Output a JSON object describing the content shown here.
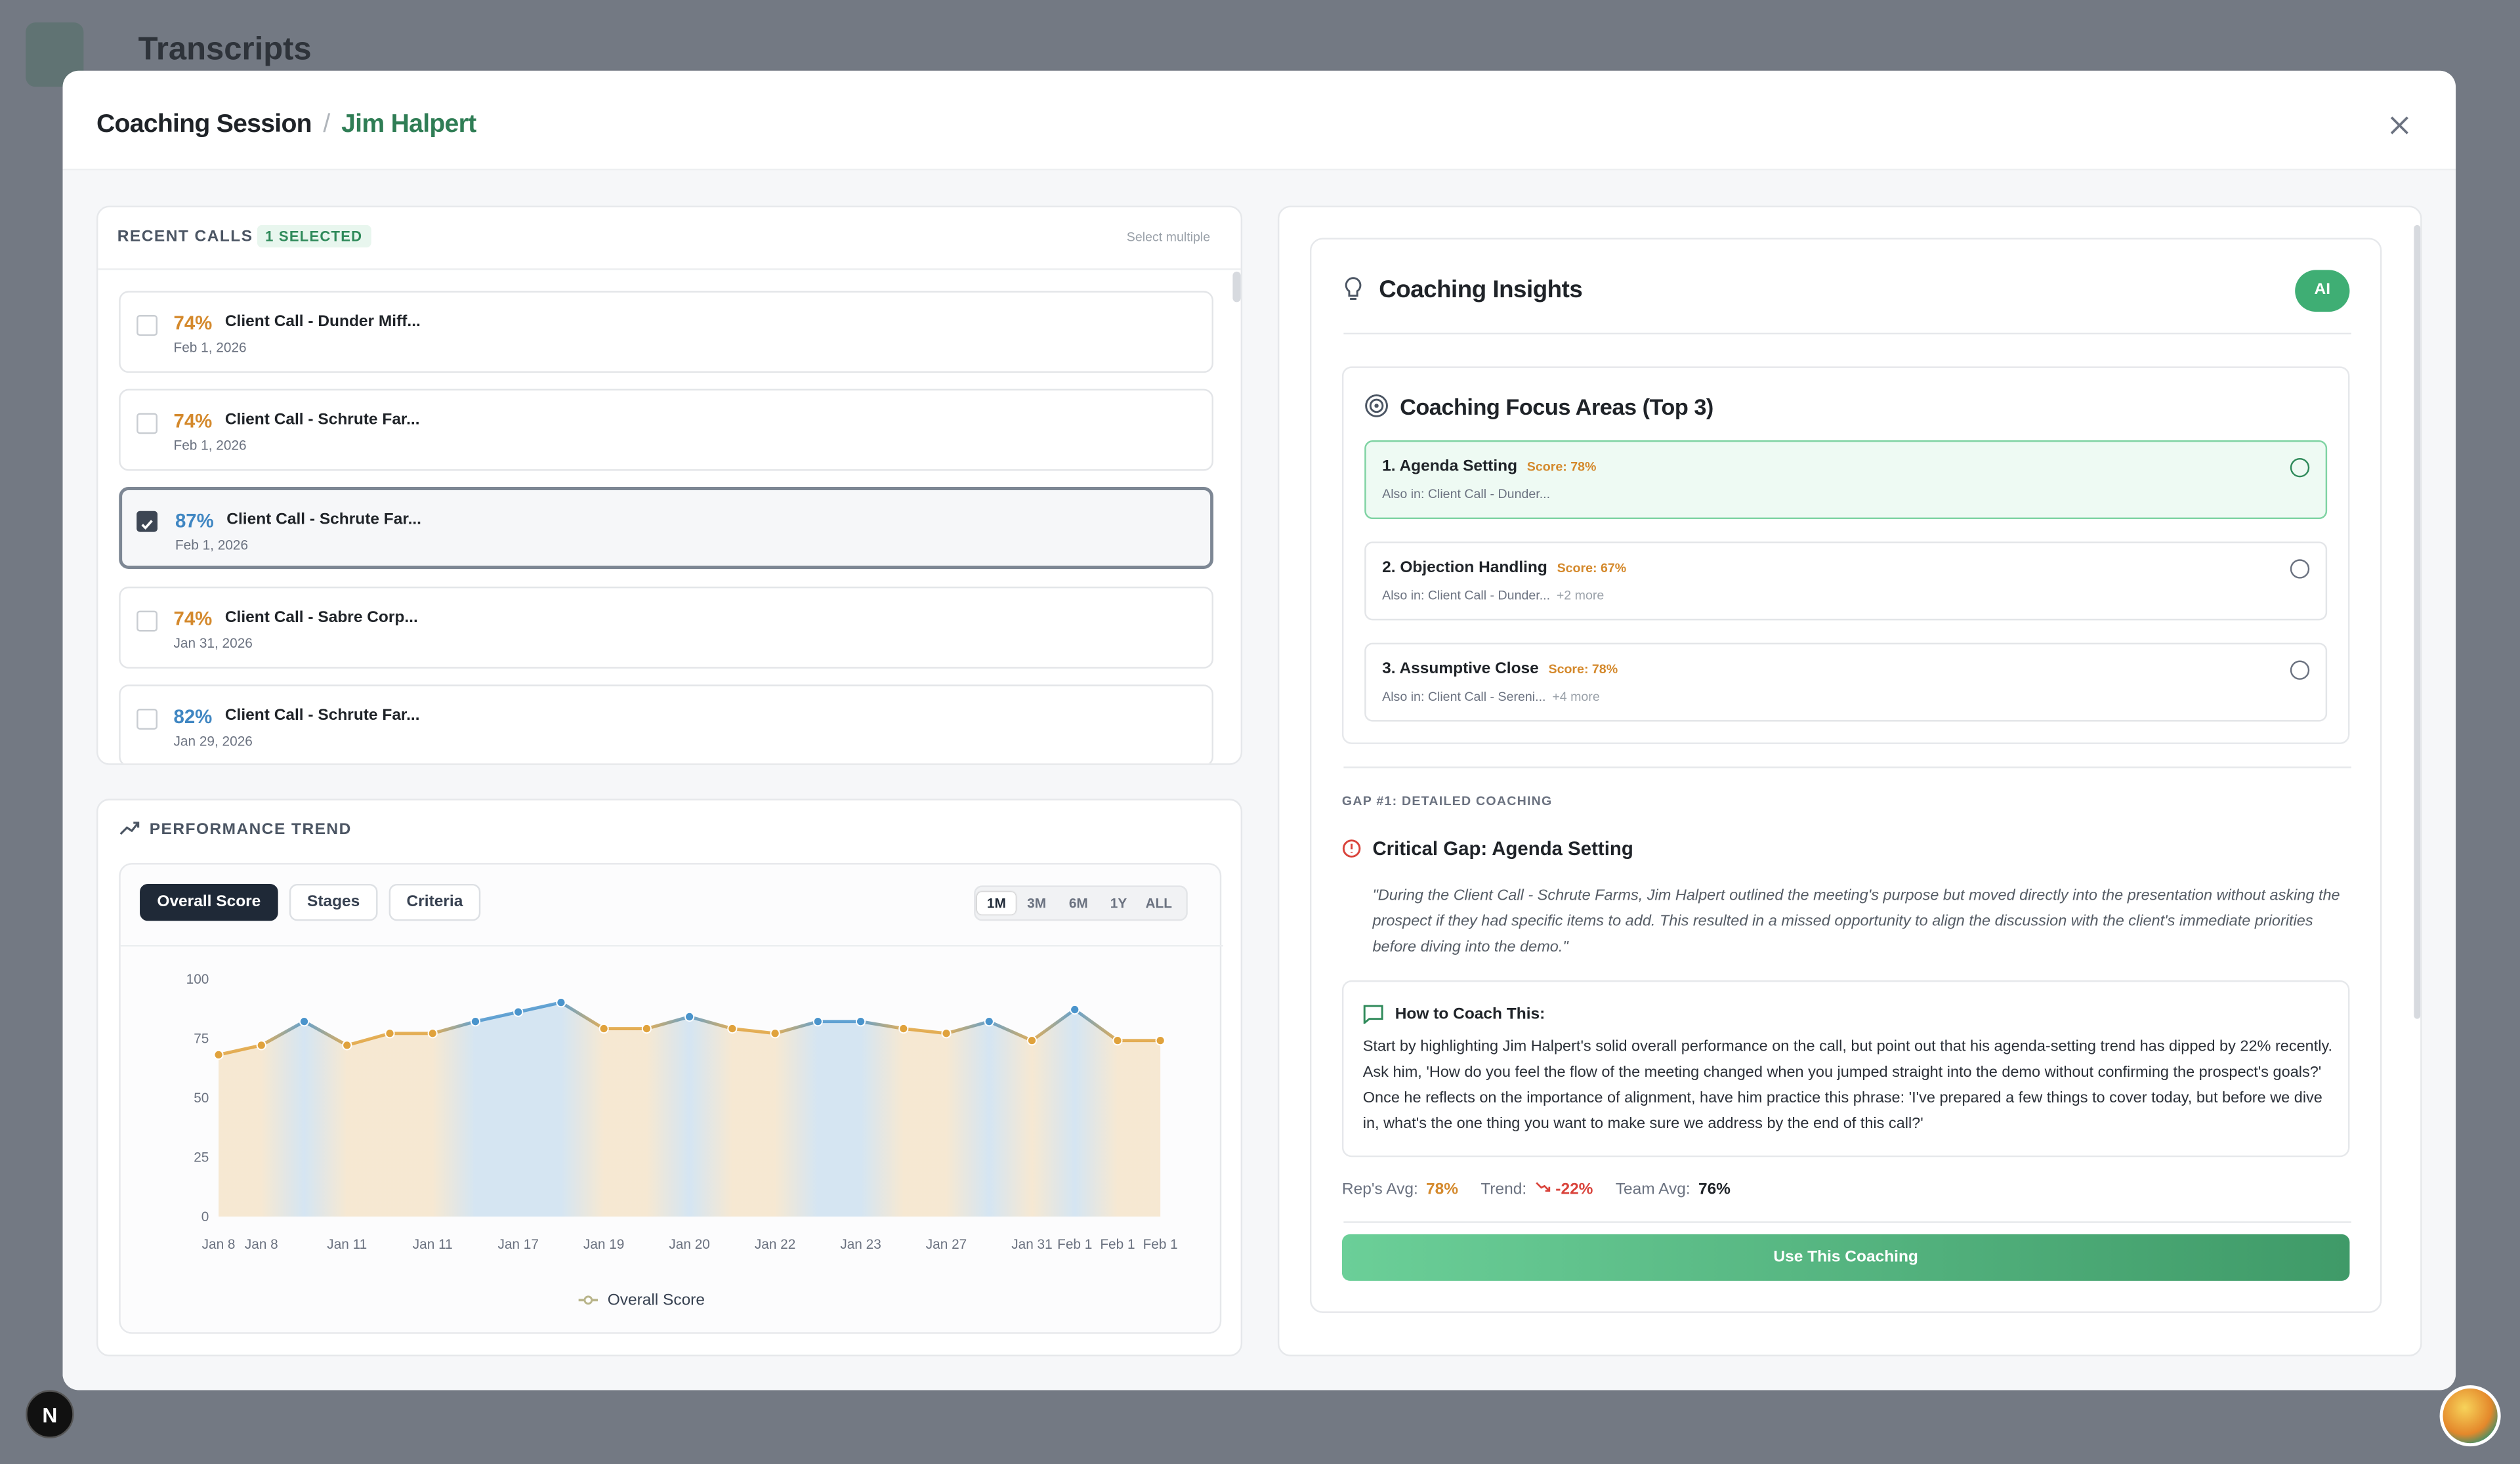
{
  "background": {
    "title": "Transcripts"
  },
  "header": {
    "title": "Coaching Session",
    "separator": "/",
    "name": "Jim Halpert"
  },
  "recent_calls": {
    "label": "RECENT CALLS",
    "badge": "1 SELECTED",
    "action": "Select multiple",
    "calls": [
      {
        "score": "74%",
        "title": "Client Call - Dunder Miff...",
        "date": "Feb 1, 2026",
        "checked": false
      },
      {
        "score": "74%",
        "title": "Client Call - Schrute Far...",
        "date": "Feb 1, 2026",
        "checked": false
      },
      {
        "score": "87%",
        "title": "Client Call - Schrute Far...",
        "date": "Feb 1, 2026",
        "checked": true
      },
      {
        "score": "74%",
        "title": "Client Call - Sabre Corp...",
        "date": "Jan 31, 2026",
        "checked": false
      },
      {
        "score": "82%",
        "title": "Client Call - Schrute Far...",
        "date": "Jan 29, 2026",
        "checked": false
      }
    ]
  },
  "performance": {
    "title": "PERFORMANCE TREND",
    "tabs": [
      "Overall Score",
      "Stages",
      "Criteria"
    ],
    "ranges": [
      "1M",
      "3M",
      "6M",
      "1Y",
      "ALL"
    ]
  },
  "chart_data": {
    "type": "line",
    "categories": [
      "Jan 8",
      "Jan 8",
      null,
      "Jan 11",
      null,
      "Jan 11",
      null,
      "Jan 17",
      null,
      "Jan 19",
      null,
      "Jan 20",
      null,
      "Jan 22",
      null,
      "Jan 23",
      null,
      "Jan 27",
      null,
      "Jan 31",
      "Feb 1",
      "Feb 1",
      "Feb 1"
    ],
    "series": [
      {
        "name": "Overall Score",
        "color": "#b8b48a",
        "values": [
          68,
          72,
          82,
          72,
          77,
          77,
          82,
          86,
          90,
          79,
          79,
          84,
          79,
          77,
          82,
          82,
          79,
          77,
          82,
          74,
          87,
          74,
          74
        ],
        "point_colors": [
          "#e0a23c",
          "#e0a23c",
          "#4a94cc",
          "#e0a23c",
          "#e0a23c",
          "#e0a23c",
          "#4a94cc",
          "#4a94cc",
          "#4a94cc",
          "#e0a23c",
          "#e0a23c",
          "#4a94cc",
          "#e0a23c",
          "#e0a23c",
          "#4a94cc",
          "#4a94cc",
          "#e0a23c",
          "#e0a23c",
          "#4a94cc",
          "#e0a23c",
          "#4a94cc",
          "#e0a23c",
          "#e0a23c"
        ]
      }
    ],
    "ylim": [
      0,
      100
    ],
    "yticks": [
      0,
      25,
      50,
      75,
      100
    ],
    "grid": false,
    "legend": "bottom"
  },
  "insights": {
    "title": "Coaching Insights",
    "badge": "AI",
    "focus_title": "Coaching Focus Areas (Top 3)",
    "focus": [
      {
        "name": "1. Agenda Setting",
        "score": "Score: 78%",
        "also": "Also in: Client Call - Dunder...",
        "more": null
      },
      {
        "name": "2. Objection Handling",
        "score": "Score: 67%",
        "also": "Also in: Client Call - Dunder...",
        "more": "+2 more"
      },
      {
        "name": "3. Assumptive Close",
        "score": "Score: 78%",
        "also": "Also in: Client Call - Sereni...",
        "more": "+4 more"
      }
    ],
    "gap_label": "GAP #1: DETAILED COACHING",
    "gap_title": "Critical Gap: Agenda Setting",
    "quote": "\"During the Client Call - Schrute Farms, Jim Halpert outlined the meeting's purpose but moved directly into the presentation without asking the prospect if they had specific items to add. This resulted in a missed opportunity to align the discussion with the client's immediate priorities before diving into the demo.\"",
    "how_title": "How to Coach This:",
    "how_text": "Start by highlighting Jim Halpert's solid overall performance on the call, but point out that his agenda-setting trend has dipped by 22% recently. Ask him, 'How do you feel the flow of the meeting changed when you jumped straight into the demo without confirming the prospect's goals?' Once he reflects on the importance of alignment, have him practice this phrase: 'I've prepared a few things to cover today, but before we dive in, what's the one thing you want to make sure we address by the end of this call?'",
    "stats": [
      {
        "label": "Rep's Avg:",
        "value": "78%"
      },
      {
        "label": "Trend:",
        "value": "-22%"
      },
      {
        "label": "Team Avg:",
        "value": "76%"
      }
    ],
    "button": "Use This Coaching"
  }
}
